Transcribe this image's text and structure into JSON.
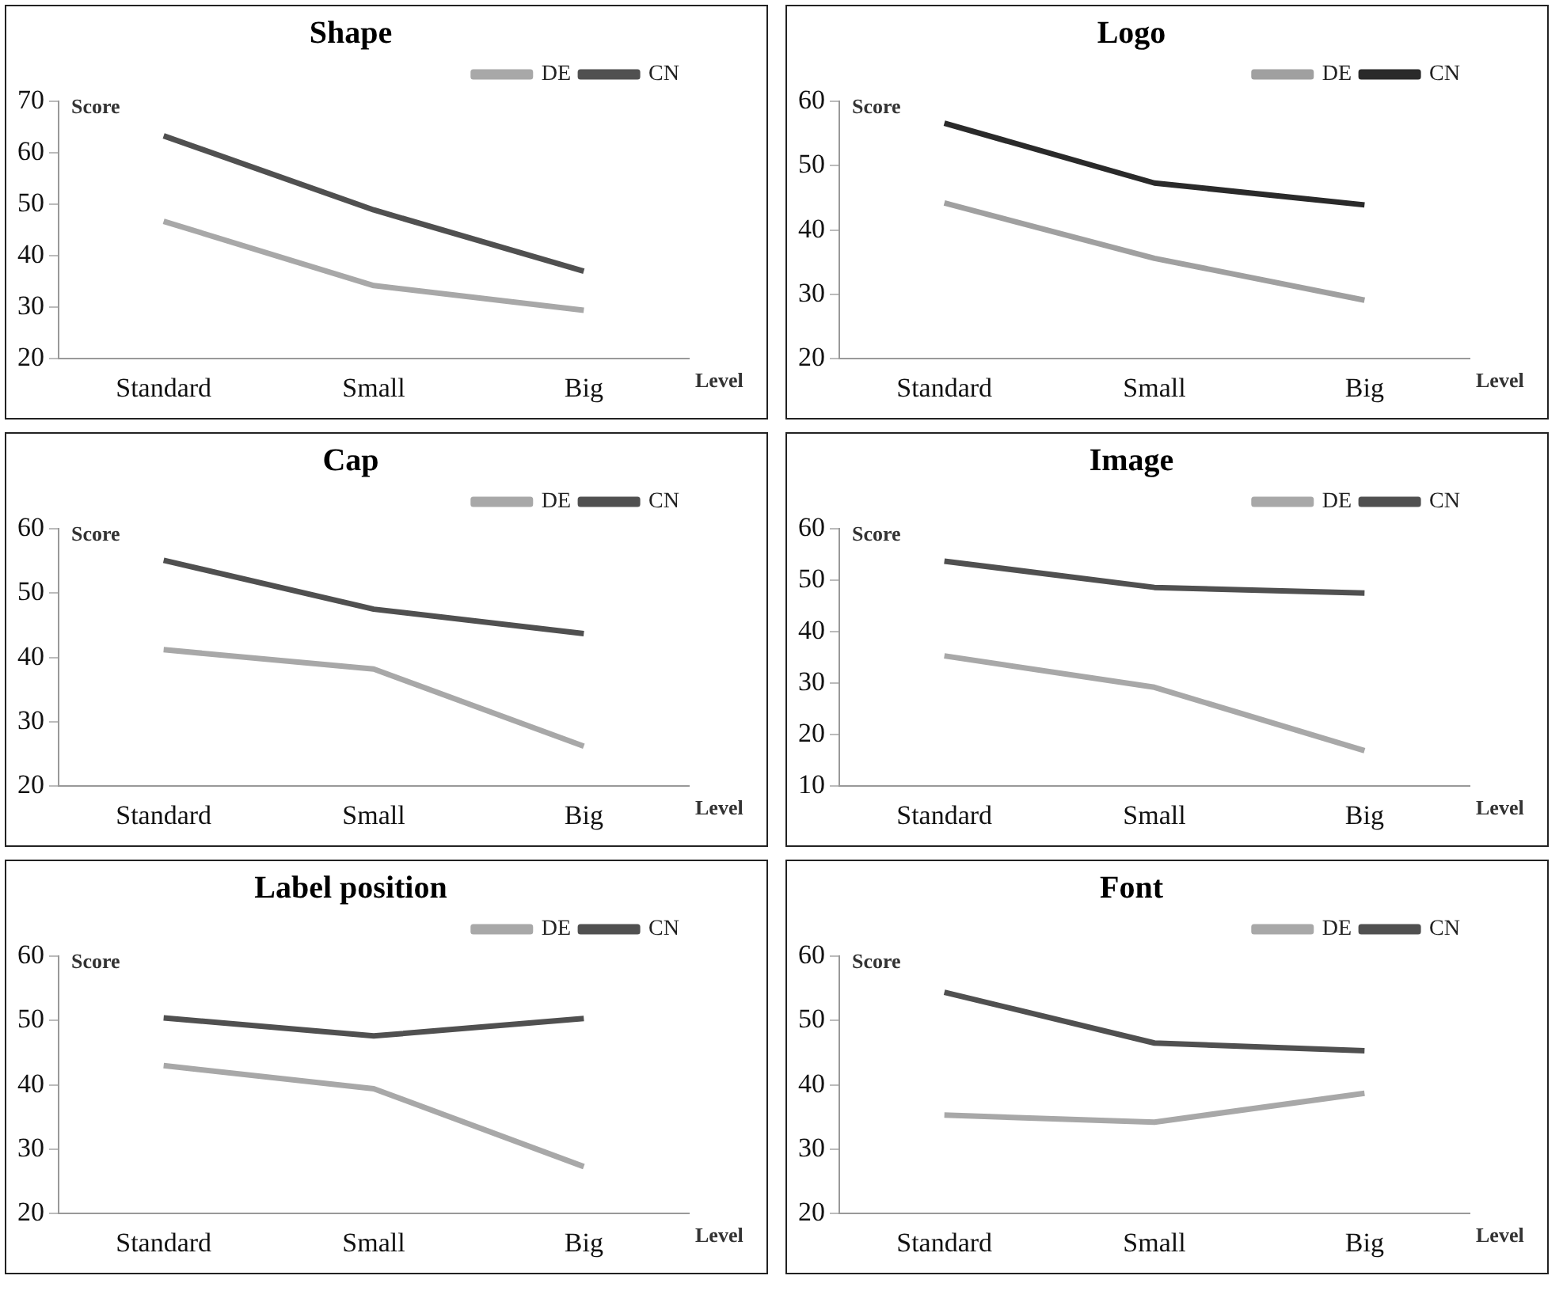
{
  "chart_data": [
    {
      "type": "line",
      "title": "Shape",
      "xlabel": "Level",
      "ylabel": "Score",
      "categories": [
        "Standard",
        "Small",
        "Big"
      ],
      "ylim": [
        20,
        70
      ],
      "yticks": [
        20,
        30,
        40,
        50,
        60,
        70
      ],
      "grid": false,
      "legend": "top right",
      "marker": "none",
      "series": [
        {
          "name": "DE",
          "color": "#a8a8a8",
          "values": [
            46.7,
            34.2,
            29.4
          ]
        },
        {
          "name": "CN",
          "color": "#505050",
          "values": [
            63.3,
            48.9,
            37.0
          ]
        }
      ]
    },
    {
      "type": "line",
      "title": "Logo",
      "xlabel": "Level",
      "ylabel": "Score",
      "categories": [
        "Standard",
        "Small",
        "Big"
      ],
      "ylim": [
        20,
        60
      ],
      "yticks": [
        20,
        30,
        40,
        50,
        60
      ],
      "grid": false,
      "legend": "top right",
      "marker": "none",
      "series": [
        {
          "name": "DE",
          "color": "#a0a0a0",
          "values": [
            44.2,
            35.6,
            29.1
          ]
        },
        {
          "name": "CN",
          "color": "#2a2a2a",
          "values": [
            56.6,
            47.3,
            43.9
          ]
        }
      ]
    },
    {
      "type": "line",
      "title": "Cap",
      "xlabel": "Level",
      "ylabel": "Score",
      "categories": [
        "Standard",
        "Small",
        "Big"
      ],
      "ylim": [
        20,
        60
      ],
      "yticks": [
        20,
        30,
        40,
        50,
        60
      ],
      "grid": false,
      "legend": "top right",
      "marker": "none",
      "series": [
        {
          "name": "DE",
          "color": "#a8a8a8",
          "values": [
            41.2,
            38.2,
            26.2
          ]
        },
        {
          "name": "CN",
          "color": "#505050",
          "values": [
            55.1,
            47.5,
            43.7
          ]
        }
      ]
    },
    {
      "type": "line",
      "title": "Image",
      "xlabel": "Level",
      "ylabel": "Score",
      "categories": [
        "Standard",
        "Small",
        "Big"
      ],
      "ylim": [
        10,
        60
      ],
      "yticks": [
        10,
        20,
        30,
        40,
        50,
        60
      ],
      "grid": false,
      "legend": "top right",
      "marker": "none",
      "series": [
        {
          "name": "DE",
          "color": "#a8a8a8",
          "values": [
            35.3,
            29.2,
            16.9
          ]
        },
        {
          "name": "CN",
          "color": "#505050",
          "values": [
            53.7,
            48.6,
            47.5
          ]
        }
      ]
    },
    {
      "type": "line",
      "title": "Label position",
      "xlabel": "Level",
      "ylabel": "Score",
      "categories": [
        "Standard",
        "Small",
        "Big"
      ],
      "ylim": [
        20,
        60
      ],
      "yticks": [
        20,
        30,
        40,
        50,
        60
      ],
      "grid": false,
      "legend": "top right",
      "marker": "none",
      "series": [
        {
          "name": "DE",
          "color": "#a8a8a8",
          "values": [
            43.0,
            39.4,
            27.3
          ]
        },
        {
          "name": "CN",
          "color": "#505050",
          "values": [
            50.4,
            47.6,
            50.3
          ]
        }
      ]
    },
    {
      "type": "line",
      "title": "Font",
      "xlabel": "Level",
      "ylabel": "Score",
      "categories": [
        "Standard",
        "Small",
        "Big"
      ],
      "ylim": [
        20,
        60
      ],
      "yticks": [
        20,
        30,
        40,
        50,
        60
      ],
      "grid": false,
      "legend": "top right",
      "marker": "none",
      "series": [
        {
          "name": "DE",
          "color": "#a8a8a8",
          "values": [
            35.3,
            34.2,
            38.7
          ]
        },
        {
          "name": "CN",
          "color": "#505050",
          "values": [
            54.4,
            46.5,
            45.3
          ]
        }
      ]
    }
  ]
}
